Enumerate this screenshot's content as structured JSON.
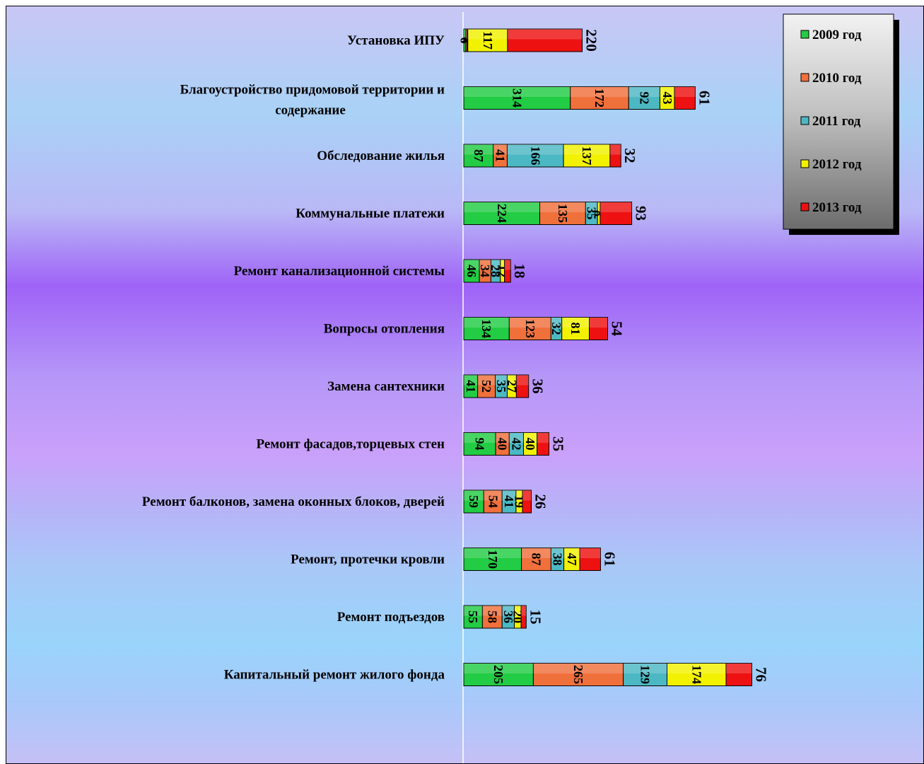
{
  "chart_data": {
    "type": "bar",
    "orientation": "horizontal",
    "stacked": true,
    "categories": [
      "Установка ИПУ",
      "Благоустройство придомовой территории и содержание",
      "Обследование жилья",
      "Коммунальные платежи",
      "Ремонт канализационной системы",
      "Вопросы отопления",
      "Замена сантехники",
      "Ремонт фасадов,торцевых стен",
      "Ремонт балконов, замена оконных блоков, дверей",
      "Ремонт, протечки кровли",
      "Ремонт подъездов",
      "Капитальный ремонт жилого фонда"
    ],
    "category_lines": [
      [
        "Установка ИПУ"
      ],
      [
        "Благоустройство придомовой территории и",
        "содержание"
      ],
      [
        "Обследование жилья"
      ],
      [
        "Коммунальные платежи"
      ],
      [
        "Ремонт канализационной системы"
      ],
      [
        "Вопросы отопления"
      ],
      [
        "Замена сантехники"
      ],
      [
        "Ремонт фасадов,торцевых стен"
      ],
      [
        "Ремонт балконов, замена оконных блоков, дверей"
      ],
      [
        "Ремонт, протечки кровли"
      ],
      [
        "Ремонт подъездов"
      ],
      [
        "Капитальный ремонт жилого фонда"
      ]
    ],
    "series": [
      {
        "name": "2009 год",
        "color": "#22cc44",
        "values": [
          6,
          314,
          87,
          224,
          46,
          134,
          41,
          94,
          59,
          170,
          55,
          205
        ]
      },
      {
        "name": "2010 год",
        "color": "#f0703c",
        "values": [
          4,
          172,
          41,
          135,
          34,
          123,
          52,
          40,
          54,
          87,
          58,
          265
        ]
      },
      {
        "name": "2011 год",
        "color": "#4cb8c4",
        "values": [
          2,
          92,
          166,
          35,
          28,
          32,
          35,
          42,
          41,
          38,
          36,
          129
        ]
      },
      {
        "name": "2012 год",
        "color": "#f2f200",
        "values": [
          117,
          43,
          137,
          8,
          12,
          81,
          27,
          40,
          19,
          47,
          20,
          174
        ]
      },
      {
        "name": "2013 год",
        "color": "#ee1111",
        "values": [
          220,
          61,
          32,
          93,
          18,
          54,
          36,
          35,
          26,
          61,
          15,
          76
        ]
      }
    ],
    "xlim": [
      0,
      1050
    ],
    "legend_position": "top-right",
    "grid": false,
    "title": "",
    "xlabel": "",
    "ylabel": ""
  }
}
